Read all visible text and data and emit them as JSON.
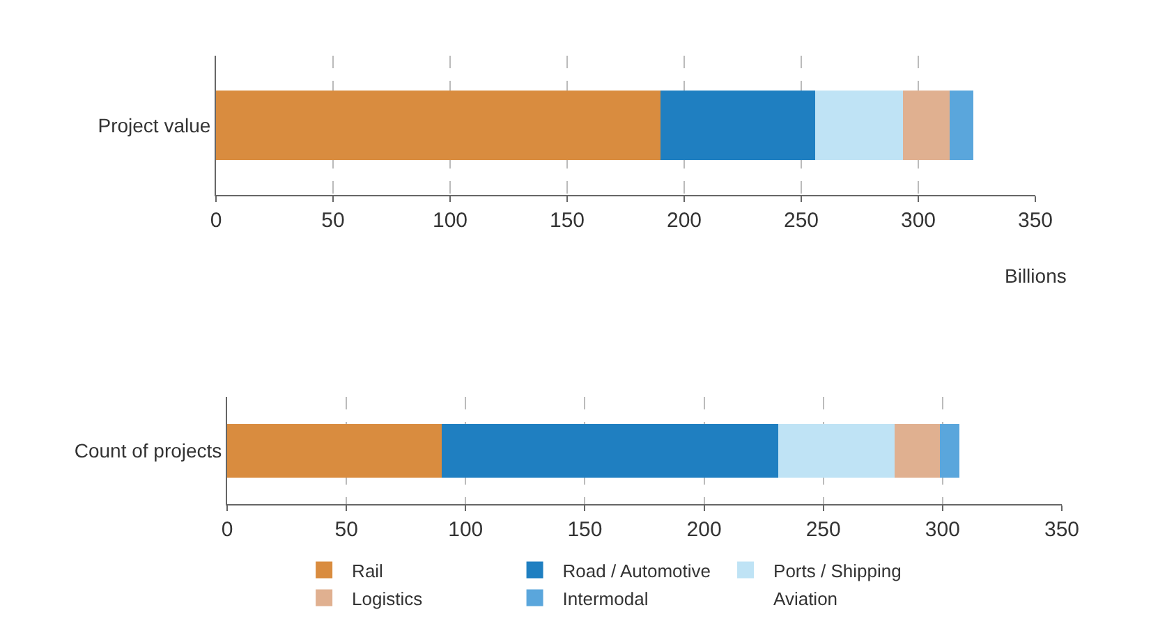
{
  "chart_data": [
    {
      "type": "bar",
      "orientation": "horizontal",
      "stacked": true,
      "categories": [
        "Project value"
      ],
      "xlabel": "Billions",
      "xlim": [
        0,
        350
      ],
      "xticks": [
        0,
        50,
        100,
        150,
        200,
        250,
        300,
        350
      ],
      "grid": "x",
      "legend": false,
      "series": [
        {
          "color": "#d98c3f",
          "values": [
            190
          ]
        },
        {
          "color": "#1f7fc1",
          "values": [
            66
          ]
        },
        {
          "color": "#bfe3f5",
          "values": [
            37.5
          ]
        },
        {
          "color": "#e0b090",
          "values": [
            20
          ]
        },
        {
          "color": "#5aa6dc",
          "values": [
            10
          ]
        },
        {
          "values": [
            0
          ]
        }
      ]
    },
    {
      "type": "bar",
      "orientation": "horizontal",
      "stacked": true,
      "categories": [
        "Count of projects"
      ],
      "xlim": [
        0,
        350
      ],
      "xticks": [
        0,
        50,
        100,
        150,
        200,
        250,
        300,
        350
      ],
      "grid": "x",
      "legend": "bottom",
      "series": [
        {
          "name": "Rail",
          "color": "#d98c3f",
          "values": [
            90
          ]
        },
        {
          "name": "Road / Automotive",
          "color": "#1f7fc1",
          "values": [
            141
          ]
        },
        {
          "name": "Ports / Shipping",
          "color": "#bfe3f5",
          "values": [
            49
          ]
        },
        {
          "name": "Logistics",
          "color": "#e0b090",
          "values": [
            19
          ]
        },
        {
          "name": "Intermodal",
          "color": "#5aa6dc",
          "values": [
            8
          ]
        },
        {
          "name": "Aviation",
          "values": [
            0
          ]
        }
      ]
    }
  ]
}
